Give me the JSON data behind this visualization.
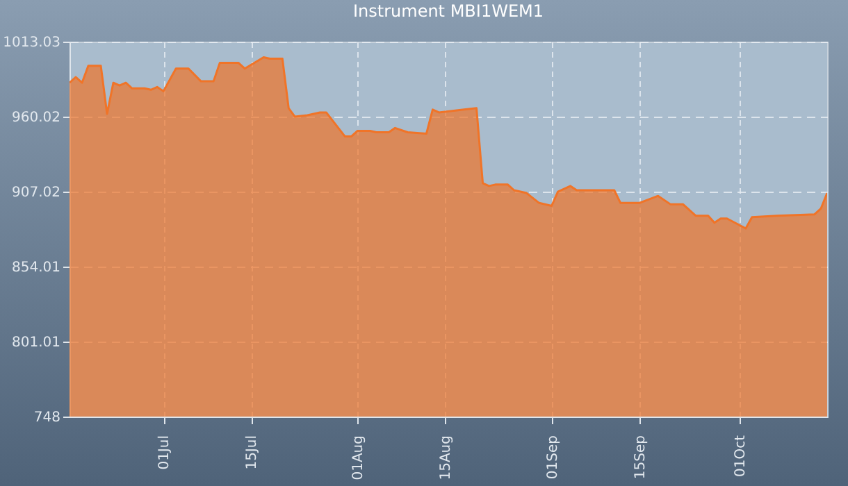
{
  "chart_data": {
    "type": "area",
    "title": "Instrument MBI1WEM1",
    "x": [
      "--06-16",
      "--06-17",
      "--06-18",
      "--06-19",
      "--06-21",
      "--06-22",
      "--06-23",
      "--06-24",
      "--06-25",
      "--06-26",
      "--06-28",
      "--06-29",
      "--06-30",
      "--07-01",
      "--07-03",
      "--07-05",
      "--07-07",
      "--07-09",
      "--07-10",
      "--07-13",
      "--07-14",
      "--07-17",
      "--07-18",
      "--07-20",
      "--07-21",
      "--07-22",
      "--07-24",
      "--07-26",
      "--07-27",
      "--07-30",
      "--07-31",
      "--08-01",
      "--08-03",
      "--08-04",
      "--08-06",
      "--08-07",
      "--08-09",
      "--08-12",
      "--08-13",
      "--08-14",
      "--08-18",
      "--08-20",
      "--08-21",
      "--08-22",
      "--08-23",
      "--08-25",
      "--08-26",
      "--08-28",
      "--08-30",
      "--09-01",
      "--09-02",
      "--09-04",
      "--09-05",
      "--09-09",
      "--09-11",
      "--09-12",
      "--09-15",
      "--09-18",
      "--09-20",
      "--09-22",
      "--09-24",
      "--09-26",
      "--09-27",
      "--09-28",
      "--09-29",
      "--10-02",
      "--10-03",
      "--10-07",
      "--10-13",
      "--10-14",
      "--10-15"
    ],
    "series": [
      {
        "color": "#f07428",
        "values": [
          984,
          988,
          984,
          996,
          996,
          962,
          984,
          982,
          984,
          980,
          980,
          979,
          981,
          978,
          994,
          994,
          985,
          985,
          998,
          998,
          994,
          1002,
          1001,
          1001,
          966,
          960,
          961,
          963,
          963,
          946,
          946,
          950,
          950,
          949,
          949,
          952,
          949,
          948,
          965,
          963,
          965,
          966,
          913,
          911,
          912,
          912,
          908,
          906,
          899,
          897,
          907,
          911,
          908,
          908,
          908,
          899,
          899,
          904,
          898,
          898,
          890,
          890,
          885,
          888,
          888,
          881,
          889,
          890,
          891,
          895,
          906
        ]
      }
    ],
    "xlim": [
      "--06-16",
      "--10-15"
    ],
    "xticks": [
      {
        "value": "--07-01",
        "label": "01Jul"
      },
      {
        "value": "--07-15",
        "label": "15Jul"
      },
      {
        "value": "--08-01",
        "label": "01Aug"
      },
      {
        "value": "--08-15",
        "label": "15Aug"
      },
      {
        "value": "--09-01",
        "label": "01Sep"
      },
      {
        "value": "--09-15",
        "label": "15Sep"
      },
      {
        "value": "--10-01",
        "label": "01Oct"
      }
    ],
    "ylim": [
      748,
      1013.03
    ],
    "yticks": [
      748,
      801.01,
      854.01,
      907.02,
      960.02,
      1013.03
    ],
    "grid": true,
    "line_style": "solid",
    "marker": "none"
  }
}
